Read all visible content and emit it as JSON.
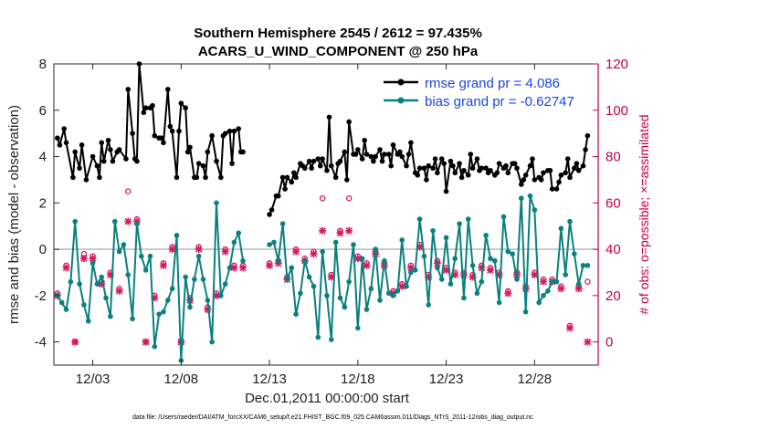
{
  "colors": {
    "rmse": "#000000",
    "bias": "#0a8080",
    "obs": "#d81b60",
    "legend_text": "#1a47e0",
    "right_axis": "#c8003f",
    "zero_line": "#b8b8b8"
  },
  "chart_data": {
    "type": "line",
    "title_line1": "Southern Hemisphere 2545 / 2612 = 97.435%",
    "title_line2": "ACARS_U_WIND_COMPONENT @ 250 hPa",
    "xlabel": "Dec.01,2011 00:00:00 start",
    "ylabel": "rmse and bias (model - observation)",
    "y2label": "# of obs: o=possible; ×=assimilated",
    "footnote": "data file: /Users/raeder/DAI/ATM_forcXX/CAM6_setup/f.e21.FHIST_BGC.f09_025.CAM6assim.011/Diags_NTrS_2011-12/obs_diag_output.nc",
    "xlim": [
      0.8,
      31.6
    ],
    "ylim": [
      -5,
      8
    ],
    "y2lim": [
      -10,
      120
    ],
    "x_ticks": [
      3,
      8,
      13,
      18,
      23,
      28
    ],
    "x_tick_labels": [
      "12/03",
      "12/08",
      "12/13",
      "12/18",
      "12/23",
      "12/28"
    ],
    "y_ticks": [
      -4,
      -2,
      0,
      2,
      4,
      6,
      8
    ],
    "y2_ticks": [
      0,
      20,
      40,
      60,
      80,
      100,
      120
    ],
    "legend": [
      "rmse grand pr = 4.086",
      "bias grand pr = -0.62747"
    ],
    "series": [
      {
        "name": "rmse",
        "axis": "left",
        "segments": [
          {
            "x": [
              1.0,
              1.13,
              1.38,
              1.5,
              1.88,
              2.0,
              2.25,
              2.38,
              2.63,
              3.0,
              3.25,
              3.38,
              3.5,
              3.63,
              3.88,
              4.0,
              4.13,
              4.38,
              4.5,
              4.88,
              5.0,
              5.25,
              5.38,
              5.5,
              5.63,
              5.88,
              6.0,
              6.25,
              6.38,
              6.5,
              6.75,
              6.88,
              7.0,
              7.25,
              7.38,
              7.5,
              7.75,
              7.88,
              8.0,
              8.25,
              8.38,
              8.5,
              8.75,
              8.88,
              9.0,
              9.25,
              9.38,
              9.5,
              9.75,
              10.0,
              10.25,
              10.38,
              10.5,
              10.75,
              10.88,
              11.0,
              11.25,
              11.38,
              11.5
            ],
            "y": [
              4.8,
              4.5,
              5.2,
              4.6,
              3.1,
              4.2,
              3.5,
              4.5,
              3.0,
              4.0,
              3.6,
              3.1,
              4.6,
              3.8,
              4.7,
              4.3,
              3.8,
              4.2,
              4.3,
              3.9,
              6.9,
              5.0,
              3.9,
              3.8,
              8.0,
              5.9,
              6.1,
              6.1,
              6.2,
              4.9,
              4.8,
              4.8,
              4.6,
              6.9,
              5.3,
              5.1,
              3.1,
              5.1,
              6.3,
              6.1,
              4.2,
              4.4,
              3.1,
              3.1,
              3.7,
              3.6,
              3.1,
              4.2,
              4.9,
              3.8,
              3.1,
              4.9,
              5.0,
              5.1,
              3.7,
              5.1,
              5.2,
              4.2,
              4.2
            ]
          },
          {
            "x": [
              13.0,
              13.13,
              13.38,
              13.5,
              13.75,
              13.88,
              14.0,
              14.25,
              14.38,
              14.5,
              14.75,
              14.88,
              15.0,
              15.25,
              15.38,
              15.5,
              15.75,
              15.88,
              16.0,
              16.25,
              16.38,
              16.5,
              16.75,
              16.88,
              17.0,
              17.25,
              17.38,
              17.5,
              17.75,
              17.88,
              18.0,
              18.25,
              18.38,
              18.5,
              18.75,
              18.88,
              19.0,
              19.25,
              19.38,
              19.5,
              19.75,
              19.88,
              20.0,
              20.25,
              20.38,
              20.5,
              20.75,
              20.88,
              21.0,
              21.25,
              21.38,
              21.5,
              21.75,
              21.88,
              22.0,
              22.25,
              22.38,
              22.5,
              22.75,
              22.88,
              23.0,
              23.25,
              23.38,
              23.5,
              23.75,
              23.88,
              24.0,
              24.25,
              24.38,
              24.5,
              24.75,
              24.88,
              25.0,
              25.25,
              25.38,
              25.5,
              25.75,
              25.88,
              26.0,
              26.25,
              26.38,
              26.5,
              26.75,
              26.88,
              27.0,
              27.25,
              27.38,
              27.5,
              27.75,
              27.88,
              28.0,
              28.25,
              28.38,
              28.5,
              28.75,
              28.88,
              29.0,
              29.25,
              29.38,
              29.5,
              29.75,
              29.88,
              30.0,
              30.25,
              30.38,
              30.5,
              30.75,
              30.88,
              31.0
            ],
            "y": [
              1.5,
              1.7,
              2.3,
              2.3,
              3.1,
              2.6,
              3.1,
              2.9,
              3.3,
              3.1,
              3.7,
              3.6,
              3.5,
              3.8,
              3.5,
              3.8,
              3.9,
              3.6,
              3.9,
              3.4,
              5.7,
              3.6,
              3.1,
              3.7,
              3.8,
              4.2,
              3.0,
              5.5,
              4.1,
              4.1,
              4.3,
              3.9,
              4.7,
              4.1,
              4.0,
              3.8,
              4.0,
              4.3,
              3.8,
              4.1,
              4.1,
              3.6,
              4.5,
              4.1,
              4.2,
              4.0,
              3.6,
              4.1,
              4.6,
              3.3,
              3.2,
              3.5,
              3.5,
              3.0,
              3.6,
              3.5,
              3.9,
              3.3,
              3.9,
              3.7,
              2.5,
              3.8,
              3.6,
              3.3,
              3.7,
              3.1,
              3.4,
              3.2,
              4.1,
              3.5,
              3.9,
              3.4,
              3.5,
              3.5,
              3.3,
              3.4,
              3.2,
              3.3,
              3.7,
              3.5,
              3.6,
              3.3,
              3.7,
              3.7,
              3.5,
              2.8,
              3.0,
              3.2,
              3.6,
              3.9,
              3.0,
              3.1,
              3.0,
              3.3,
              3.4,
              3.4,
              2.6,
              2.6,
              2.9,
              3.2,
              3.3,
              3.9,
              3.1,
              3.5,
              3.7,
              3.4,
              3.6,
              4.3,
              4.9
            ]
          }
        ]
      },
      {
        "name": "bias",
        "axis": "left",
        "segments": [
          {
            "x": [
              1.0,
              1.25,
              1.5,
              1.75,
              2.0,
              2.25,
              2.5,
              2.75,
              3.0,
              3.25,
              3.5,
              3.75,
              4.0,
              4.25,
              4.5,
              4.75,
              5.0,
              5.25,
              5.5,
              5.75,
              6.0,
              6.25,
              6.5,
              6.75,
              7.0,
              7.25,
              7.5,
              7.75,
              8.0,
              8.25,
              8.5,
              8.75,
              9.0,
              9.25,
              9.5,
              9.75,
              10.0,
              10.25,
              10.5,
              10.75,
              11.0,
              11.25,
              11.5
            ],
            "y": [
              -2.0,
              -2.3,
              -2.6,
              -1.4,
              1.2,
              -1.5,
              -2.4,
              -3.1,
              -0.6,
              -1.5,
              -1.2,
              -2.1,
              -2.9,
              1.2,
              -0.1,
              0.2,
              -1.1,
              -3.0,
              1.1,
              -0.3,
              -0.9,
              -0.3,
              -4.2,
              -2.8,
              -2.7,
              -2.2,
              -1.7,
              0.6,
              -4.8,
              -1.2,
              -2.5,
              -1.3,
              -0.3,
              -1.3,
              -2.2,
              -4.0,
              2.0,
              -2.0,
              -1.5,
              -0.8,
              0.3,
              0.7,
              -0.5
            ]
          },
          {
            "x": [
              13.0,
              13.25,
              13.5,
              13.75,
              14.0,
              14.25,
              14.5,
              14.75,
              15.0,
              15.25,
              15.5,
              15.75,
              16.0,
              16.25,
              16.5,
              16.75,
              17.0,
              17.25,
              17.5,
              17.75,
              18.0,
              18.25,
              18.5,
              18.75,
              19.0,
              19.25,
              19.5,
              19.75,
              20.0,
              20.25,
              20.5,
              20.75,
              21.0,
              21.25,
              21.5,
              21.75,
              22.0,
              22.25,
              22.5,
              22.75,
              23.0,
              23.25,
              23.5,
              23.75,
              24.0,
              24.25,
              24.5,
              24.75,
              25.0,
              25.25,
              25.5,
              25.75,
              26.0,
              26.25,
              26.5,
              26.75,
              27.0,
              27.25,
              27.5,
              27.75,
              28.0,
              28.25,
              28.5,
              28.75,
              29.0,
              29.25,
              29.5,
              29.75,
              30.0,
              30.25,
              30.5,
              30.75,
              31.0
            ],
            "y": [
              0.2,
              0.3,
              -0.5,
              1.1,
              -1.3,
              -0.8,
              -2.8,
              -1.9,
              -0.5,
              -1.2,
              -1.6,
              -3.8,
              -0.1,
              -2.0,
              -3.9,
              0.3,
              -2.1,
              -2.5,
              -1.4,
              0.2,
              -3.4,
              -0.4,
              -2.6,
              -1.7,
              0.0,
              -2.2,
              -0.5,
              -1.9,
              -2.0,
              -1.8,
              0.4,
              -1.6,
              -1.0,
              -0.9,
              1.3,
              -0.3,
              -2.4,
              0.8,
              -0.8,
              -1.3,
              0.5,
              -1.5,
              -0.4,
              1.1,
              -2.1,
              1.3,
              -0.7,
              -1.9,
              -1.4,
              0.6,
              -0.4,
              -0.5,
              -2.3,
              1.4,
              -0.1,
              -0.2,
              -1.3,
              2.2,
              -2.7,
              2.3,
              1.7,
              -2.3,
              -2.0,
              -1.8,
              -1.4,
              -1.4,
              0.9,
              -1.1,
              1.2,
              -0.2,
              -1.5,
              -0.7,
              -0.7
            ]
          }
        ]
      },
      {
        "name": "obs possible (o)",
        "axis": "right",
        "x": [
          1.0,
          1.5,
          2.0,
          2.5,
          3.0,
          3.5,
          4.0,
          4.5,
          5.0,
          5.5,
          6.0,
          6.5,
          7.0,
          7.5,
          8.0,
          8.5,
          9.0,
          9.5,
          10.0,
          10.5,
          11.0,
          11.5,
          13.0,
          13.5,
          14.0,
          14.5,
          15.0,
          15.5,
          16.0,
          16.5,
          17.0,
          17.5,
          18.0,
          18.5,
          19.0,
          19.5,
          20.0,
          20.5,
          21.0,
          21.5,
          22.0,
          22.5,
          23.0,
          23.5,
          24.0,
          24.5,
          25.0,
          25.5,
          26.0,
          26.5,
          27.0,
          27.5,
          28.0,
          28.5,
          29.0,
          29.5,
          30.0,
          30.5,
          31.0
        ],
        "y": [
          21,
          33,
          0,
          38,
          37,
          26,
          30,
          23,
          65,
          53,
          0,
          20,
          34,
          41,
          0,
          19,
          41,
          15,
          21,
          40,
          33,
          33,
          34,
          35,
          28,
          40,
          36,
          39,
          62,
          29,
          48,
          62,
          37,
          34,
          39,
          34,
          22,
          25,
          33,
          42,
          29,
          35,
          32,
          30,
          30,
          29,
          33,
          32,
          30,
          22,
          30,
          24,
          30,
          27,
          27,
          24,
          7,
          24,
          26
        ]
      },
      {
        "name": "obs assimilated (×)",
        "axis": "right",
        "x": [
          1.0,
          1.5,
          2.0,
          2.5,
          3.0,
          3.5,
          4.0,
          4.5,
          5.0,
          5.5,
          6.0,
          6.5,
          7.0,
          7.5,
          8.0,
          8.5,
          9.0,
          9.5,
          10.0,
          10.5,
          11.0,
          11.5,
          13.0,
          13.5,
          14.0,
          14.5,
          15.0,
          15.5,
          16.0,
          16.5,
          17.0,
          17.5,
          18.0,
          18.5,
          19.0,
          19.5,
          20.0,
          20.5,
          21.0,
          21.5,
          22.0,
          22.5,
          23.0,
          23.5,
          24.0,
          24.5,
          25.0,
          25.5,
          26.0,
          26.5,
          27.0,
          27.5,
          28.0,
          28.5,
          29.0,
          29.5,
          30.0,
          30.5,
          31.0
        ],
        "y": [
          20,
          32,
          0,
          36,
          36,
          25,
          29,
          22,
          52,
          52,
          0,
          19,
          33,
          40,
          0,
          18,
          40,
          14,
          20,
          39,
          32,
          32,
          33,
          34,
          27,
          39,
          35,
          38,
          48,
          28,
          47,
          48,
          36,
          33,
          38,
          33,
          21,
          24,
          32,
          41,
          28,
          34,
          31,
          29,
          29,
          28,
          32,
          31,
          29,
          21,
          29,
          23,
          29,
          26,
          26,
          23,
          6,
          23,
          0
        ]
      }
    ]
  }
}
